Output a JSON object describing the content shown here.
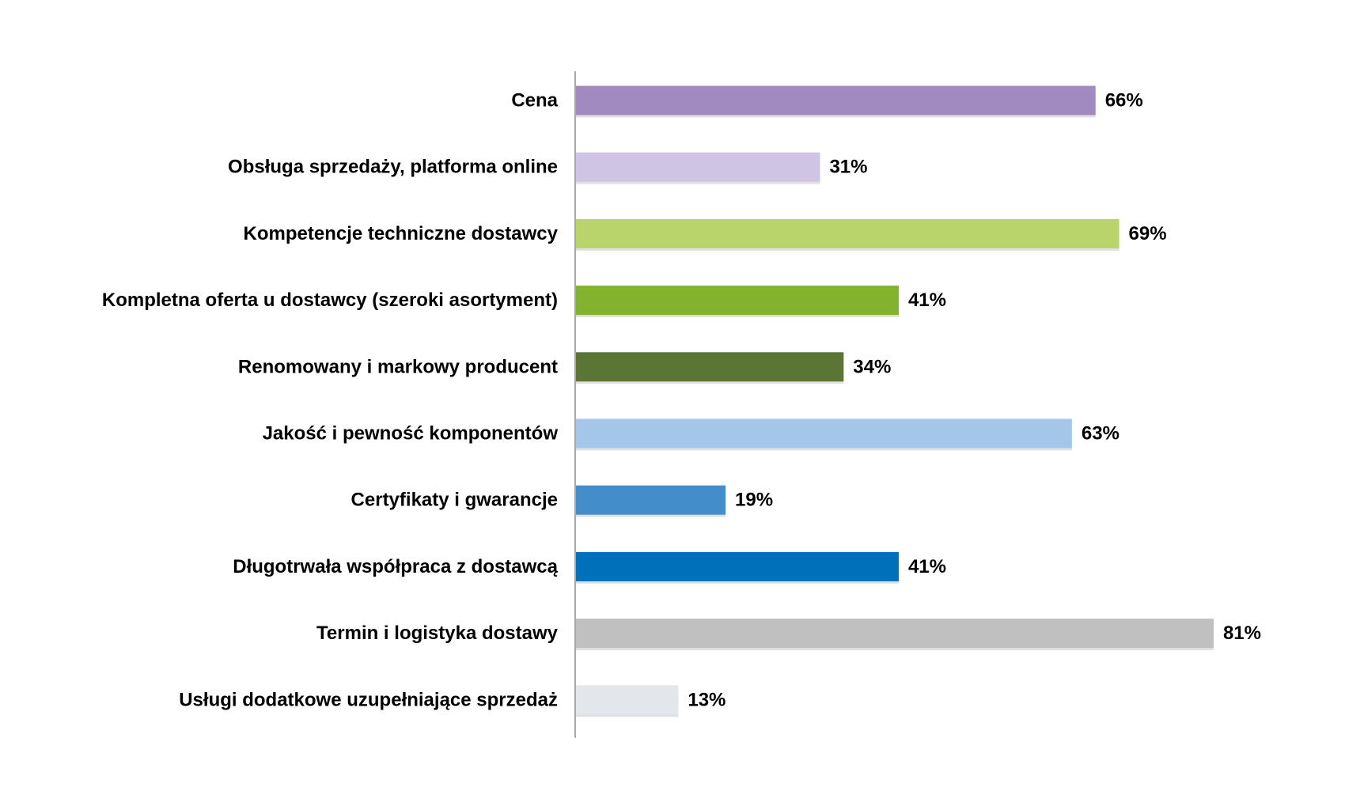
{
  "chart_data": {
    "type": "bar",
    "orientation": "horizontal",
    "title": "",
    "xlabel": "",
    "ylabel": "",
    "xlim": [
      0,
      100
    ],
    "grid": false,
    "legend": "none",
    "categories": [
      "Cena",
      "Obsługa sprzedaży, platforma online",
      "Kompetencje techniczne dostawcy",
      "Kompletna oferta u dostawcy (szeroki asortyment)",
      "Renomowany i markowy producent",
      "Jakość i pewność komponentów",
      "Certyfikaty i gwarancje",
      "Długotrwała współpraca z dostawcą",
      "Termin i logistyka dostawy",
      "Usługi dodatkowe uzupełniające sprzedaż"
    ],
    "values": [
      66,
      31,
      69,
      41,
      34,
      63,
      19,
      41,
      81,
      13
    ],
    "value_labels": [
      "66%",
      "31%",
      "69%",
      "41%",
      "34%",
      "63%",
      "19%",
      "41%",
      "81%",
      "13%"
    ],
    "colors": [
      "#A08ABF",
      "#CFC4E3",
      "#B8D46B",
      "#82B22E",
      "#5A7534",
      "#A3C6E9",
      "#438DCB",
      "#0070BA",
      "#C0C0C0",
      "#E3E6EB"
    ]
  }
}
